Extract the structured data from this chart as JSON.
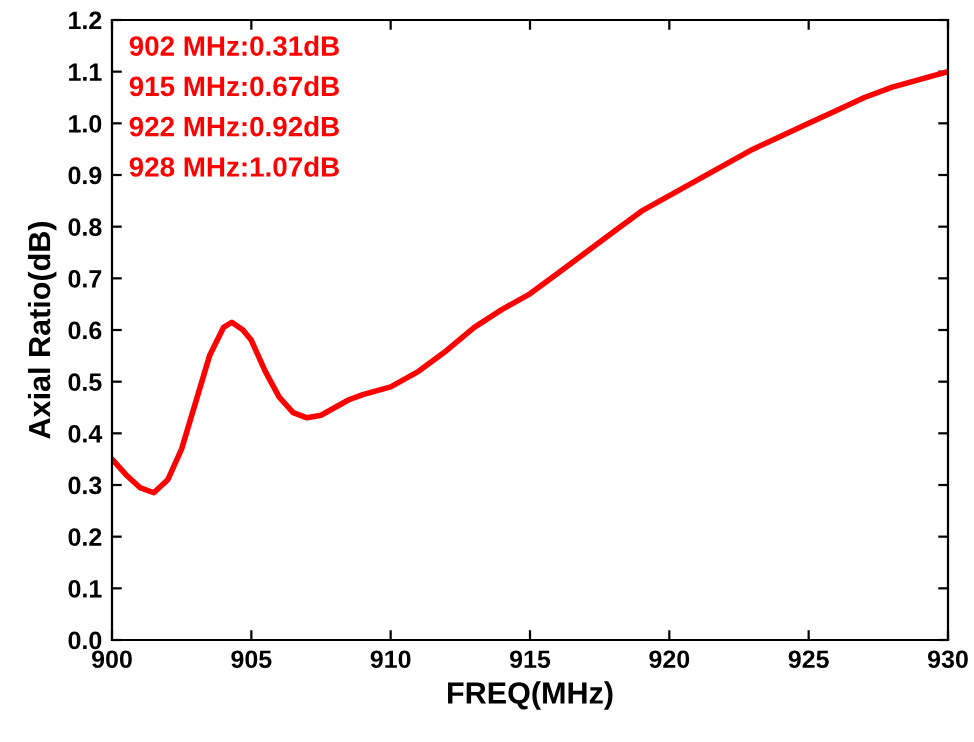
{
  "chart_data": {
    "type": "line",
    "xlabel": "FREQ(MHz)",
    "ylabel": "Axial Ratio(dB)",
    "x": [
      900,
      900.5,
      901,
      901.5,
      902,
      902.5,
      903,
      903.5,
      904,
      904.3,
      904.7,
      905,
      905.5,
      906,
      906.5,
      907,
      907.5,
      908,
      908.5,
      909,
      910,
      911,
      912,
      913,
      914,
      915,
      916,
      917,
      918,
      919,
      920,
      921,
      922,
      923,
      924,
      925,
      926,
      927,
      928,
      929,
      930
    ],
    "series": [
      {
        "color": "#ff0000",
        "values": [
          0.35,
          0.32,
          0.295,
          0.285,
          0.31,
          0.37,
          0.46,
          0.55,
          0.605,
          0.615,
          0.6,
          0.58,
          0.52,
          0.47,
          0.44,
          0.43,
          0.435,
          0.45,
          0.465,
          0.475,
          0.49,
          0.52,
          0.56,
          0.605,
          0.64,
          0.67,
          0.71,
          0.75,
          0.79,
          0.83,
          0.86,
          0.89,
          0.92,
          0.95,
          0.975,
          1.0,
          1.025,
          1.05,
          1.07,
          1.085,
          1.1
        ]
      }
    ],
    "annotations": [
      "902 MHz:0.31dB",
      "915 MHz:0.67dB",
      "922 MHz:0.92dB",
      "928 MHz:1.07dB"
    ],
    "xlim": [
      900,
      930
    ],
    "xticks": [
      900,
      905,
      910,
      915,
      920,
      925,
      930
    ],
    "ylim": [
      0,
      1.2
    ],
    "yticks": [
      {
        "value": 0,
        "label": "0.0"
      },
      {
        "value": 0.1,
        "label": "0.1"
      },
      {
        "value": 0.2,
        "label": "0.2"
      },
      {
        "value": 0.3,
        "label": "0.3"
      },
      {
        "value": 0.4,
        "label": "0.4"
      },
      {
        "value": 0.5,
        "label": "0.5"
      },
      {
        "value": 0.6,
        "label": "0.6"
      },
      {
        "value": 0.7,
        "label": "0.7"
      },
      {
        "value": 0.8,
        "label": "0.8"
      },
      {
        "value": 0.9,
        "label": "0.9"
      },
      {
        "value": 1.0,
        "label": "1.0"
      },
      {
        "value": 1.1,
        "label": "1.1"
      },
      {
        "value": 1.2,
        "label": "1.2"
      }
    ],
    "grid": false,
    "legend": false,
    "marker": "none",
    "line_style": "solid"
  }
}
